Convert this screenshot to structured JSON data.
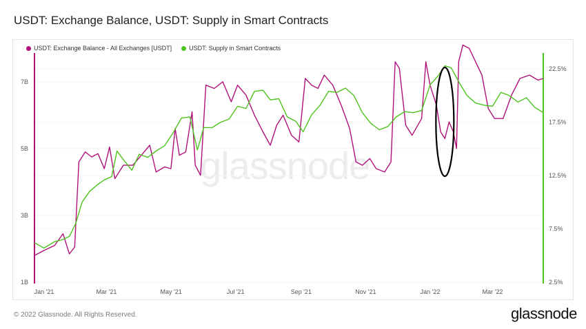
{
  "title": "USDT: Exchange Balance, USDT: Supply in Smart Contracts",
  "footer": "© 2022 Glassnode. All Rights Reserved.",
  "brand": "glassnode",
  "watermark": "glassnode",
  "colors": {
    "magenta": "#b0107a",
    "green": "#4cc21c",
    "annotation": "#000000"
  },
  "chart_data": {
    "type": "line",
    "legend_position": "top-left",
    "grid": true,
    "x_ticks": [
      "Jan '21",
      "Mar '21",
      "May '21",
      "Jul '21",
      "Sep '21",
      "Nov '21",
      "Jan '22",
      "Mar '22"
    ],
    "y_left_ticks": [
      "7B",
      "5B",
      "3B",
      "1B"
    ],
    "y_right_ticks": [
      "22.5%",
      "17.5%",
      "12.5%",
      "7.5%",
      "2.5%"
    ],
    "y_left_range": [
      1,
      7.8
    ],
    "y_right_range": [
      2.5,
      23.8
    ],
    "x_range": [
      "2021-01-01",
      "2022-04-27"
    ],
    "annotation": {
      "shape": "ellipse",
      "around_date": "2022-01-24"
    },
    "series": [
      {
        "name": "USDT: Exchange Balance - All Exchanges [USDT]",
        "color": "#b0107a",
        "axis": "left",
        "points": [
          [
            "2021-01-01",
            1.8
          ],
          [
            "2021-01-10",
            1.95
          ],
          [
            "2021-01-20",
            2.1
          ],
          [
            "2021-01-28",
            2.45
          ],
          [
            "2021-02-03",
            1.85
          ],
          [
            "2021-02-08",
            2.05
          ],
          [
            "2021-02-12",
            4.6
          ],
          [
            "2021-02-18",
            4.9
          ],
          [
            "2021-02-24",
            4.75
          ],
          [
            "2021-03-02",
            4.85
          ],
          [
            "2021-03-08",
            4.4
          ],
          [
            "2021-03-13",
            5.05
          ],
          [
            "2021-03-18",
            4.1
          ],
          [
            "2021-03-26",
            4.5
          ],
          [
            "2021-04-04",
            4.5
          ],
          [
            "2021-04-12",
            4.8
          ],
          [
            "2021-04-20",
            5.1
          ],
          [
            "2021-04-26",
            4.3
          ],
          [
            "2021-05-04",
            4.45
          ],
          [
            "2021-05-10",
            4.4
          ],
          [
            "2021-05-14",
            5.6
          ],
          [
            "2021-05-18",
            4.8
          ],
          [
            "2021-05-24",
            4.9
          ],
          [
            "2021-05-30",
            6.1
          ],
          [
            "2021-06-02",
            4.5
          ],
          [
            "2021-06-07",
            4.2
          ],
          [
            "2021-06-12",
            6.9
          ],
          [
            "2021-06-20",
            6.8
          ],
          [
            "2021-06-28",
            7.0
          ],
          [
            "2021-07-06",
            6.4
          ],
          [
            "2021-07-12",
            6.9
          ],
          [
            "2021-07-20",
            6.6
          ],
          [
            "2021-07-28",
            6.0
          ],
          [
            "2021-08-05",
            5.5
          ],
          [
            "2021-08-12",
            5.1
          ],
          [
            "2021-08-18",
            5.7
          ],
          [
            "2021-08-24",
            6.0
          ],
          [
            "2021-09-01",
            5.4
          ],
          [
            "2021-09-08",
            5.2
          ],
          [
            "2021-09-14",
            7.1
          ],
          [
            "2021-09-20",
            6.9
          ],
          [
            "2021-09-26",
            6.8
          ],
          [
            "2021-10-02",
            7.2
          ],
          [
            "2021-10-10",
            6.9
          ],
          [
            "2021-10-18",
            6.3
          ],
          [
            "2021-10-26",
            5.6
          ],
          [
            "2021-11-01",
            4.6
          ],
          [
            "2021-11-07",
            4.5
          ],
          [
            "2021-11-14",
            4.7
          ],
          [
            "2021-11-20",
            4.4
          ],
          [
            "2021-11-28",
            4.3
          ],
          [
            "2021-12-04",
            4.6
          ],
          [
            "2021-12-08",
            7.6
          ],
          [
            "2021-12-12",
            7.4
          ],
          [
            "2021-12-18",
            5.7
          ],
          [
            "2021-12-24",
            5.4
          ],
          [
            "2022-01-02",
            5.9
          ],
          [
            "2022-01-06",
            7.6
          ],
          [
            "2022-01-10",
            6.9
          ],
          [
            "2022-01-16",
            6.3
          ],
          [
            "2022-01-20",
            5.5
          ],
          [
            "2022-01-24",
            5.3
          ],
          [
            "2022-01-28",
            5.8
          ],
          [
            "2022-02-01",
            5.5
          ],
          [
            "2022-02-04",
            5.0
          ],
          [
            "2022-02-06",
            7.6
          ],
          [
            "2022-02-10",
            8.1
          ],
          [
            "2022-02-16",
            8.0
          ],
          [
            "2022-02-22",
            7.6
          ],
          [
            "2022-02-28",
            7.2
          ],
          [
            "2022-03-06",
            6.2
          ],
          [
            "2022-03-12",
            5.9
          ],
          [
            "2022-03-20",
            5.9
          ],
          [
            "2022-03-28",
            6.6
          ],
          [
            "2022-04-05",
            7.1
          ],
          [
            "2022-04-14",
            7.2
          ],
          [
            "2022-04-22",
            7.05
          ],
          [
            "2022-04-27",
            7.1
          ]
        ]
      },
      {
        "name": "USDT: Supply in Smart Contracts",
        "color": "#4cc21c",
        "axis": "right",
        "points": [
          [
            "2021-01-01",
            6.2
          ],
          [
            "2021-01-10",
            5.7
          ],
          [
            "2021-01-20",
            6.3
          ],
          [
            "2021-01-28",
            6.5
          ],
          [
            "2021-02-03",
            6.8
          ],
          [
            "2021-02-09",
            8.0
          ],
          [
            "2021-02-15",
            10.0
          ],
          [
            "2021-02-22",
            11.0
          ],
          [
            "2021-03-01",
            11.6
          ],
          [
            "2021-03-08",
            12.1
          ],
          [
            "2021-03-15",
            12.4
          ],
          [
            "2021-03-20",
            14.8
          ],
          [
            "2021-03-26",
            14.0
          ],
          [
            "2021-04-03",
            13.0
          ],
          [
            "2021-04-10",
            14.5
          ],
          [
            "2021-04-18",
            14.2
          ],
          [
            "2021-04-26",
            14.8
          ],
          [
            "2021-05-04",
            15.3
          ],
          [
            "2021-05-12",
            16.5
          ],
          [
            "2021-05-20",
            17.9
          ],
          [
            "2021-05-28",
            18.0
          ],
          [
            "2021-06-04",
            14.9
          ],
          [
            "2021-06-10",
            17.0
          ],
          [
            "2021-06-18",
            17.0
          ],
          [
            "2021-06-26",
            17.5
          ],
          [
            "2021-07-04",
            17.8
          ],
          [
            "2021-07-12",
            19.0
          ],
          [
            "2021-07-20",
            18.8
          ],
          [
            "2021-07-28",
            20.4
          ],
          [
            "2021-08-05",
            20.5
          ],
          [
            "2021-08-12",
            19.6
          ],
          [
            "2021-08-20",
            19.7
          ],
          [
            "2021-08-28",
            18.0
          ],
          [
            "2021-09-05",
            17.6
          ],
          [
            "2021-09-12",
            16.6
          ],
          [
            "2021-09-20",
            18.2
          ],
          [
            "2021-09-28",
            19.1
          ],
          [
            "2021-10-06",
            20.4
          ],
          [
            "2021-10-14",
            20.3
          ],
          [
            "2021-10-22",
            20.7
          ],
          [
            "2021-10-30",
            20.0
          ],
          [
            "2021-11-07",
            18.4
          ],
          [
            "2021-11-15",
            17.4
          ],
          [
            "2021-11-23",
            16.8
          ],
          [
            "2021-12-01",
            17.1
          ],
          [
            "2021-12-09",
            18.0
          ],
          [
            "2021-12-17",
            18.5
          ],
          [
            "2021-12-25",
            18.4
          ],
          [
            "2022-01-02",
            18.6
          ],
          [
            "2022-01-10",
            21.0
          ],
          [
            "2022-01-18",
            21.9
          ],
          [
            "2022-01-24",
            22.8
          ],
          [
            "2022-01-30",
            22.6
          ],
          [
            "2022-02-06",
            21.3
          ],
          [
            "2022-02-14",
            20.0
          ],
          [
            "2022-02-22",
            19.3
          ],
          [
            "2022-03-02",
            19.1
          ],
          [
            "2022-03-10",
            19.0
          ],
          [
            "2022-03-18",
            20.3
          ],
          [
            "2022-03-26",
            20.0
          ],
          [
            "2022-04-03",
            19.4
          ],
          [
            "2022-04-11",
            19.8
          ],
          [
            "2022-04-19",
            18.9
          ],
          [
            "2022-04-27",
            18.4
          ]
        ]
      }
    ]
  }
}
